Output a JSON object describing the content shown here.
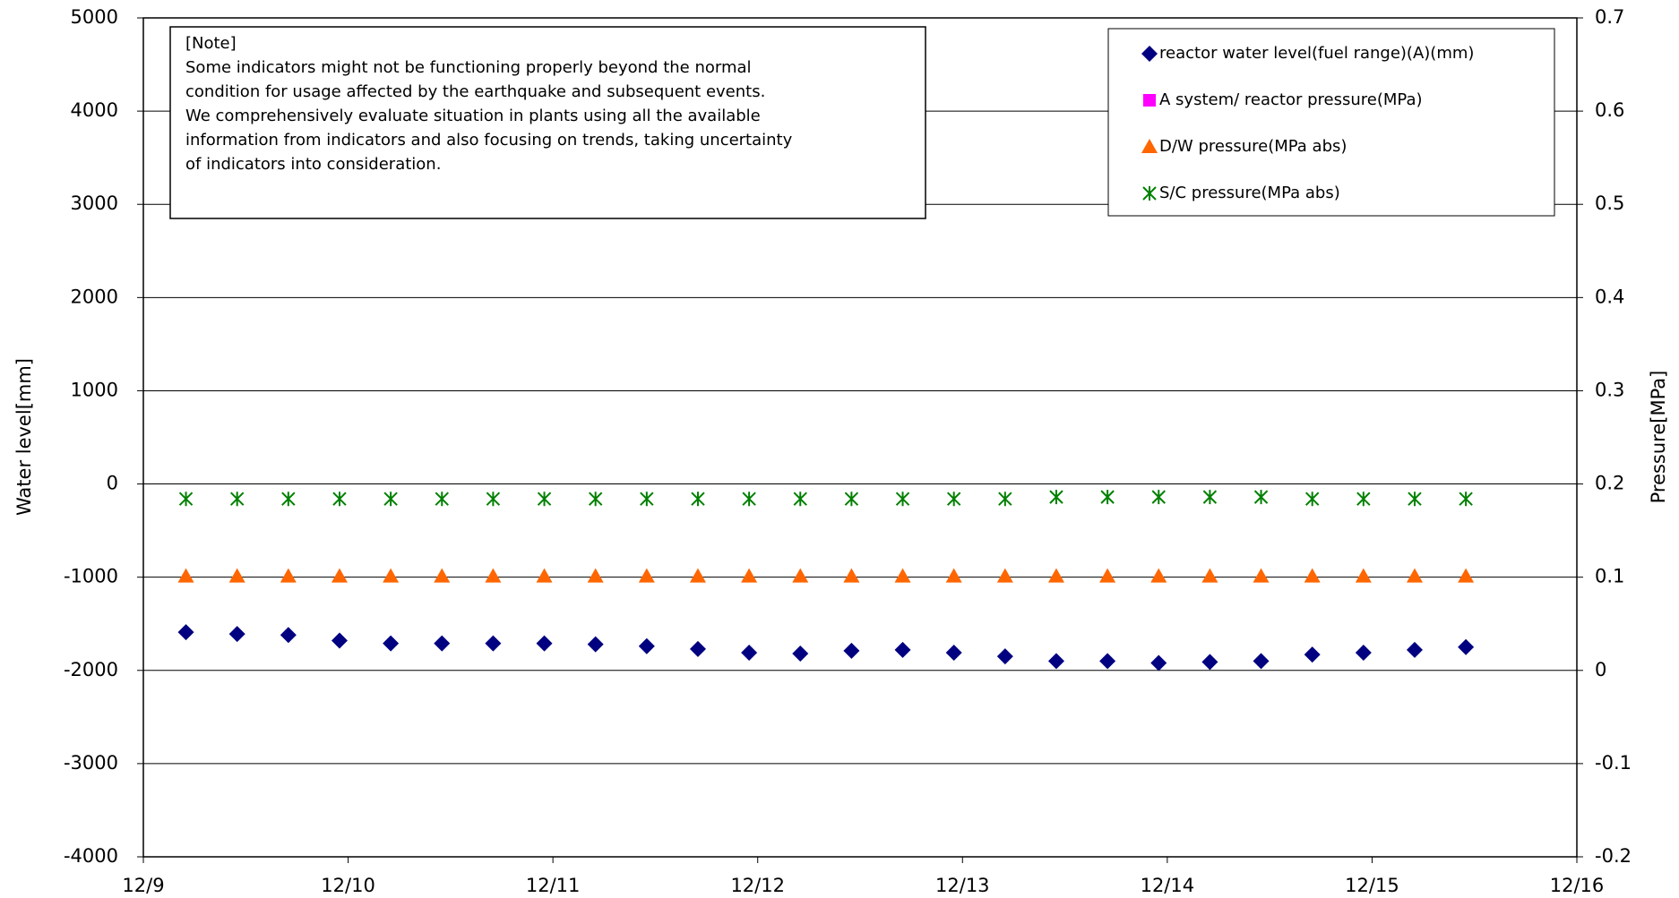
{
  "chart_data": {
    "type": "scatter",
    "x": [
      9.208,
      9.458,
      9.708,
      9.958,
      10.208,
      10.458,
      10.708,
      10.958,
      11.208,
      11.458,
      11.708,
      11.958,
      12.208,
      12.458,
      12.708,
      12.958,
      13.208,
      13.458,
      13.708,
      13.958,
      14.208,
      14.458,
      14.708,
      14.958,
      15.208,
      15.458
    ],
    "series": [
      {
        "name": "reactor water level(fuel range)(A)(mm)",
        "color": "#000080",
        "marker": "diamond",
        "values": [
          -1590,
          -1610,
          -1620,
          -1680,
          -1710,
          -1710,
          -1710,
          -1710,
          -1720,
          -1740,
          -1770,
          -1810,
          -1820,
          -1790,
          -1780,
          -1810,
          -1850,
          -1900,
          -1900,
          -1920,
          -1910,
          -1900,
          -1830,
          -1810,
          -1780,
          -1750
        ]
      },
      {
        "name": "A system/ reactor pressure(MPa)",
        "color": "#ff00ff",
        "marker": "square",
        "axis": "y2",
        "values": [
          null,
          null,
          null,
          null,
          null,
          null,
          null,
          null,
          null,
          null,
          null,
          null,
          null,
          null,
          null,
          null,
          null,
          null,
          null,
          null,
          null,
          null,
          null,
          null,
          null,
          null
        ]
      },
      {
        "name": "D/W pressure(MPa abs)",
        "color": "#ff6600",
        "marker": "triangle",
        "axis": "y2",
        "values": [
          0.101,
          0.101,
          0.101,
          0.101,
          0.101,
          0.101,
          0.101,
          0.101,
          0.101,
          0.101,
          0.101,
          0.101,
          0.101,
          0.101,
          0.101,
          0.101,
          0.101,
          0.101,
          0.101,
          0.101,
          0.101,
          0.101,
          0.101,
          0.101,
          0.101,
          0.101
        ]
      },
      {
        "name": "S/C pressure(MPa abs)",
        "color": "#008000",
        "marker": "asterisk",
        "axis": "y2",
        "values": [
          0.184,
          0.184,
          0.184,
          0.184,
          0.184,
          0.184,
          0.184,
          0.184,
          0.184,
          0.184,
          0.184,
          0.184,
          0.184,
          0.184,
          0.184,
          0.184,
          0.184,
          0.186,
          0.186,
          0.186,
          0.186,
          0.186,
          0.184,
          0.184,
          0.184,
          0.184
        ]
      }
    ],
    "xlim": [
      9,
      16
    ],
    "xticks": [
      {
        "value": 9,
        "label": "12/9"
      },
      {
        "value": 10,
        "label": "12/10"
      },
      {
        "value": 11,
        "label": "12/11"
      },
      {
        "value": 12,
        "label": "12/12"
      },
      {
        "value": 13,
        "label": "12/13"
      },
      {
        "value": 14,
        "label": "12/14"
      },
      {
        "value": 15,
        "label": "12/15"
      },
      {
        "value": 16,
        "label": "12/16"
      }
    ],
    "ylim": [
      -4000,
      5000
    ],
    "yticks": [
      -4000,
      -3000,
      -2000,
      -1000,
      0,
      1000,
      2000,
      3000,
      4000,
      5000
    ],
    "y2lim": [
      -0.2,
      0.7
    ],
    "y2ticks": [
      -0.2,
      -0.1,
      0,
      0.1,
      0.2,
      0.3,
      0.4,
      0.5,
      0.6,
      0.7
    ],
    "ylabel": "Water level[mm]",
    "y2label": "Pressure[MPa]",
    "grid": true,
    "legend": "upper right",
    "note_title": "[Note]",
    "note_lines": [
      "Some indicators might not be functioning properly beyond the normal",
      "condition for usage affected by the earthquake and subsequent events.",
      "We comprehensively evaluate situation in plants using all the available",
      "information from indicators and also focusing on trends, taking uncertainty",
      "of indicators into consideration."
    ]
  }
}
